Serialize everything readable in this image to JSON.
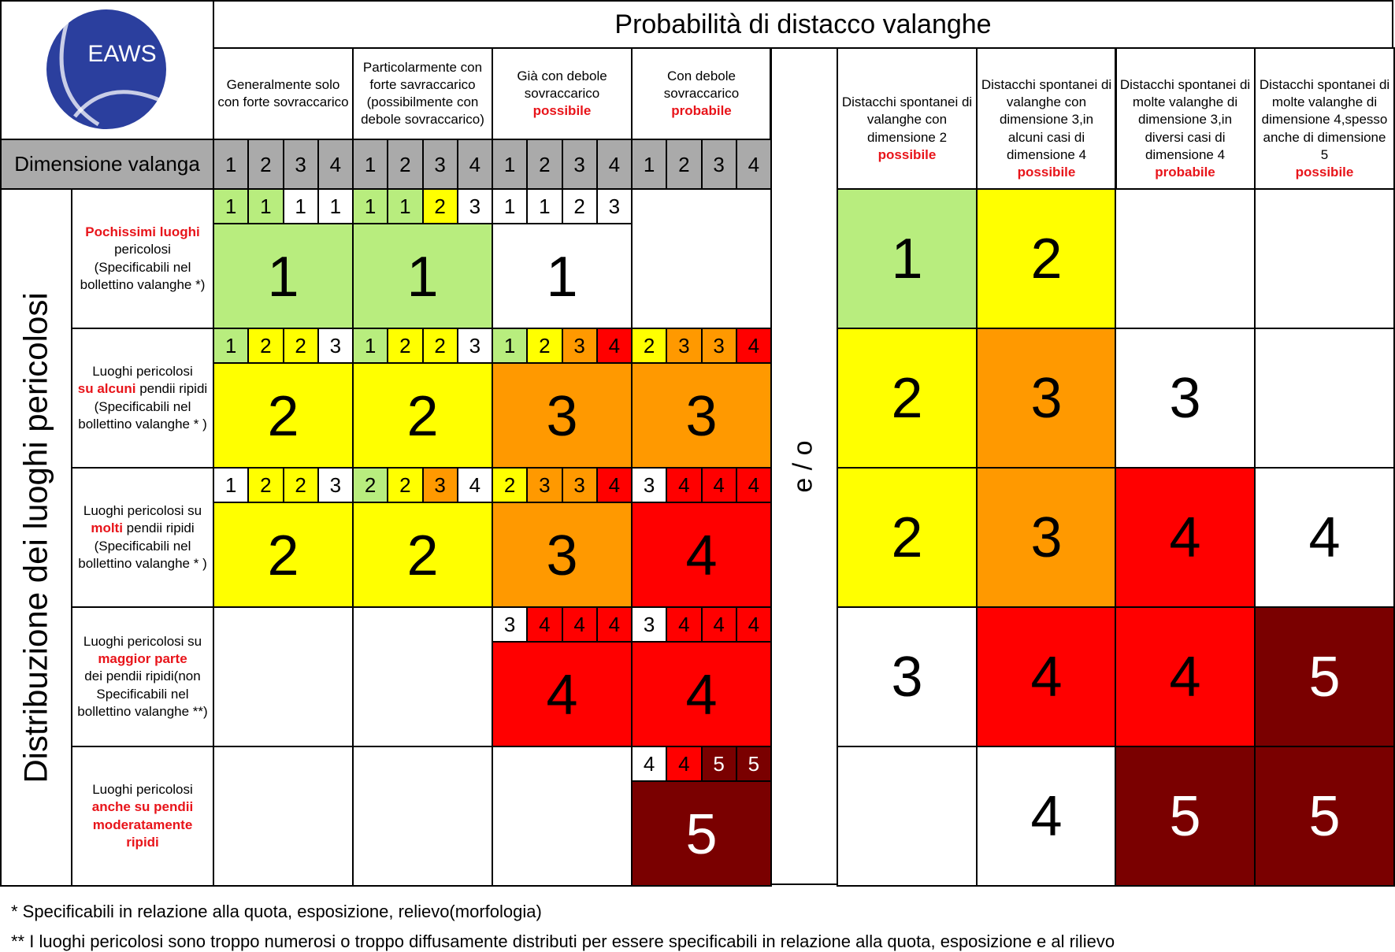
{
  "logo": {
    "text": "EAWS",
    "colors": {
      "circle": "#2b3f9e",
      "arc": "#ffffff"
    }
  },
  "title": "Probabilità di distacco valanghe",
  "size_label": "Dimensione valanga",
  "sizes": [
    "1",
    "2",
    "3",
    "4"
  ],
  "and_or": "e / o",
  "left_axis_label": "Distribuzione dei luoghi pericolosi",
  "trigger_columns": [
    {
      "parts": [
        {
          "text": "Generalmente solo con forte sovraccarico",
          "hl": false
        }
      ]
    },
    {
      "parts": [
        {
          "text": "Particolarmente con forte savraccarico (possibilmente con debole sovraccarico)",
          "hl": false
        }
      ]
    },
    {
      "parts": [
        {
          "text": "Già con debole sovraccarico",
          "hl": false
        },
        {
          "text": "possibile",
          "hl": true
        }
      ]
    },
    {
      "parts": [
        {
          "text": "Con debole sovraccarico",
          "hl": false
        },
        {
          "text": "probabile",
          "hl": true
        }
      ]
    }
  ],
  "spontaneous_columns": [
    {
      "parts": [
        {
          "text": "Distacchi spontanei di valanghe con dimensione 2",
          "hl": false
        },
        {
          "text": "possibile",
          "hl": true
        }
      ]
    },
    {
      "parts": [
        {
          "text": "Distacchi spontanei di valanghe con dimensione 3,in alcuni casi di dimensione 4",
          "hl": false
        },
        {
          "text": "possibile",
          "hl": true
        }
      ]
    },
    {
      "parts": [
        {
          "text": "Distacchi spontanei di molte valanghe di dimensione 3,in diversi casi di dimensione 4",
          "hl": false
        },
        {
          "text": "probabile",
          "hl": true
        }
      ]
    },
    {
      "parts": [
        {
          "text": "Distacchi spontanei di molte valanghe di dimensione 4,spesso anche di dimensione 5",
          "hl": false
        },
        {
          "text": "possibile",
          "hl": true,
          "inline": true
        }
      ]
    }
  ],
  "rows": [
    {
      "label": [
        {
          "t": "Pochissimi luoghi",
          "hl": true
        },
        {
          "t": "pericolosi",
          "hl": false
        },
        {
          "t": "(Specificabili nel",
          "hl": false
        },
        {
          "t": "bollettino valanghe *)",
          "hl": false
        }
      ]
    },
    {
      "label": [
        {
          "t": "Luoghi pericolosi",
          "hl": false
        },
        {
          "t": "su alcuni|| pendii ripidi",
          "hl": "mixed"
        },
        {
          "t": "(Specificabili nel",
          "hl": false
        },
        {
          "t": "bollettino valanghe * )",
          "hl": false
        }
      ]
    },
    {
      "label": [
        {
          "t": "Luoghi pericolosi su",
          "hl": false
        },
        {
          "t": "molti|| pendii ripidi",
          "hl": "mixed"
        },
        {
          "t": "(Specificabili nel",
          "hl": false
        },
        {
          "t": "bollettino valanghe * )",
          "hl": false
        }
      ]
    },
    {
      "label": [
        {
          "t": "Luoghi pericolosi su",
          "hl": false
        },
        {
          "t": "maggior parte",
          "hl": true
        },
        {
          "t": "dei pendii ripidi(non",
          "hl": false
        },
        {
          "t": "Specificabili nel",
          "hl": false
        },
        {
          "t": "bollettino valanghe **)",
          "hl": false
        }
      ]
    },
    {
      "label": [
        {
          "t": "Luoghi pericolosi",
          "hl": false
        },
        {
          "t": "anche su pendii",
          "hl": true
        },
        {
          "t": "moderatamente",
          "hl": true
        },
        {
          "t": "ripidi",
          "hl": true
        }
      ]
    }
  ],
  "trigger_matrix": [
    [
      {
        "big": {
          "v": "1",
          "c": "green"
        },
        "small": [
          [
            "1",
            "green"
          ],
          [
            "1",
            "green"
          ],
          [
            "1",
            "white"
          ],
          [
            "1",
            "white"
          ]
        ]
      },
      {
        "big": {
          "v": "1",
          "c": "green"
        },
        "small": [
          [
            "1",
            "green"
          ],
          [
            "1",
            "green"
          ],
          [
            "2",
            "yellow"
          ],
          [
            "3",
            "white"
          ]
        ]
      },
      {
        "big": {
          "v": "1",
          "c": "white"
        },
        "small": [
          [
            "1",
            "white"
          ],
          [
            "1",
            "white"
          ],
          [
            "2",
            "white"
          ],
          [
            "3",
            "white"
          ]
        ]
      },
      null
    ],
    [
      {
        "big": {
          "v": "2",
          "c": "yellow"
        },
        "small": [
          [
            "1",
            "green"
          ],
          [
            "2",
            "yellow"
          ],
          [
            "2",
            "yellow"
          ],
          [
            "3",
            "white"
          ]
        ]
      },
      {
        "big": {
          "v": "2",
          "c": "yellow"
        },
        "small": [
          [
            "1",
            "green"
          ],
          [
            "2",
            "yellow"
          ],
          [
            "2",
            "yellow"
          ],
          [
            "3",
            "white"
          ]
        ]
      },
      {
        "big": {
          "v": "3",
          "c": "orange"
        },
        "small": [
          [
            "1",
            "green"
          ],
          [
            "2",
            "yellow"
          ],
          [
            "3",
            "orange"
          ],
          [
            "4",
            "red"
          ]
        ]
      },
      {
        "big": {
          "v": "3",
          "c": "orange"
        },
        "small": [
          [
            "2",
            "yellow"
          ],
          [
            "3",
            "orange"
          ],
          [
            "3",
            "orange"
          ],
          [
            "4",
            "red"
          ]
        ]
      }
    ],
    [
      {
        "big": {
          "v": "2",
          "c": "yellow"
        },
        "small": [
          [
            "1",
            "white"
          ],
          [
            "2",
            "yellow"
          ],
          [
            "2",
            "yellow"
          ],
          [
            "3",
            "white"
          ]
        ]
      },
      {
        "big": {
          "v": "2",
          "c": "yellow"
        },
        "small": [
          [
            "2",
            "green"
          ],
          [
            "2",
            "yellow"
          ],
          [
            "3",
            "orange"
          ],
          [
            "4",
            "white"
          ]
        ]
      },
      {
        "big": {
          "v": "3",
          "c": "orange"
        },
        "small": [
          [
            "2",
            "yellow"
          ],
          [
            "3",
            "orange"
          ],
          [
            "3",
            "orange"
          ],
          [
            "4",
            "red"
          ]
        ]
      },
      {
        "big": {
          "v": "4",
          "c": "red"
        },
        "small": [
          [
            "3",
            "white"
          ],
          [
            "4",
            "red"
          ],
          [
            "4",
            "red"
          ],
          [
            "4",
            "red"
          ]
        ]
      }
    ],
    [
      null,
      null,
      {
        "big": {
          "v": "4",
          "c": "red"
        },
        "small": [
          [
            "3",
            "white"
          ],
          [
            "4",
            "red"
          ],
          [
            "4",
            "red"
          ],
          [
            "4",
            "red"
          ]
        ]
      },
      {
        "big": {
          "v": "4",
          "c": "red"
        },
        "small": [
          [
            "3",
            "white"
          ],
          [
            "4",
            "red"
          ],
          [
            "4",
            "red"
          ],
          [
            "4",
            "red"
          ]
        ]
      }
    ],
    [
      null,
      null,
      null,
      {
        "big": {
          "v": "5",
          "c": "dark"
        },
        "small": [
          [
            "4",
            "white"
          ],
          [
            "4",
            "red"
          ],
          [
            "5",
            "dark"
          ],
          [
            "5",
            "dark"
          ]
        ]
      }
    ]
  ],
  "spontaneous_matrix": [
    [
      [
        "1",
        "green"
      ],
      [
        "2",
        "yellow"
      ],
      [
        "",
        "white"
      ],
      [
        "",
        "white"
      ]
    ],
    [
      [
        "2",
        "yellow"
      ],
      [
        "3",
        "orange"
      ],
      [
        "3",
        "white"
      ],
      [
        "",
        "white"
      ]
    ],
    [
      [
        "2",
        "yellow"
      ],
      [
        "3",
        "orange"
      ],
      [
        "4",
        "red"
      ],
      [
        "4",
        "white"
      ]
    ],
    [
      [
        "3",
        "white"
      ],
      [
        "4",
        "red"
      ],
      [
        "4",
        "red"
      ],
      [
        "5",
        "dark"
      ]
    ],
    [
      [
        "",
        "white"
      ],
      [
        "4",
        "white"
      ],
      [
        "5",
        "dark"
      ],
      [
        "5",
        "dark"
      ]
    ]
  ],
  "level_colors": {
    "green": "#b8ed7e",
    "yellow": "#ffff00",
    "orange": "#ff9900",
    "red": "#ff0000",
    "dark": "#7a0000",
    "white": "#ffffff",
    "gray": "#aaaaaa"
  },
  "footnotes": [
    "*   Specificabili in relazione alla quota, esposizione, relievo(morfologia)",
    "**  I luoghi pericolosi sono troppo numerosi o troppo diffusamente distributi per essere specificabili in relazione alla quota, esposizione e al rilievo"
  ]
}
